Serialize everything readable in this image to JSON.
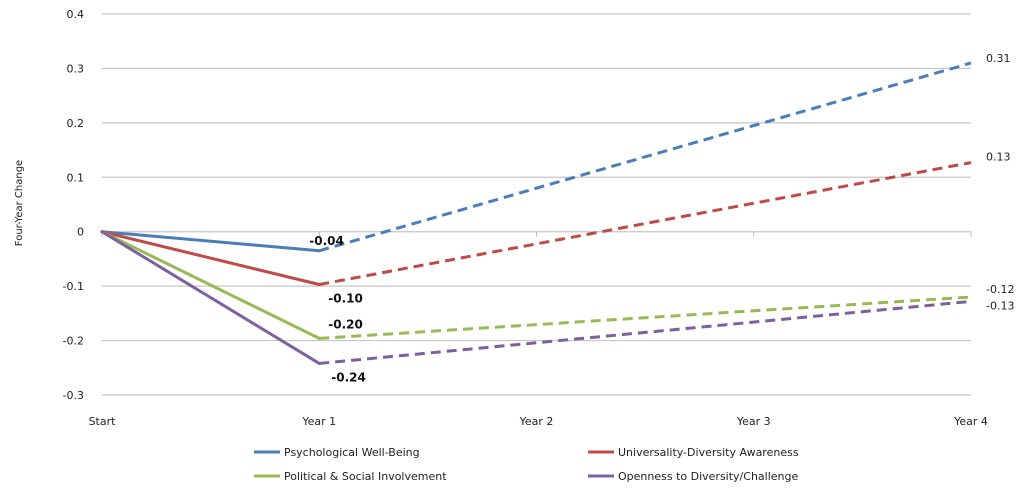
{
  "chart_data": {
    "type": "line",
    "title": "",
    "xlabel": "",
    "ylabel": "Four-Year Change",
    "categories": [
      "Start",
      "Year 1",
      "Year 2",
      "Year 3",
      "Year 4"
    ],
    "ylim": [
      -0.3,
      0.4
    ],
    "yticks": [
      "0.4",
      "0.3",
      "0.2",
      "0.1",
      "0",
      "-0.1",
      "-0.2",
      "-0.3"
    ],
    "grid": true,
    "legend_position": "bottom",
    "series": [
      {
        "name": "Psychological Well-Being",
        "color": "#4a7ebb",
        "solid": [
          0,
          -0.035
        ],
        "dashed_end": 0.31,
        "year1_label": "-0.04",
        "end_label": "0.31"
      },
      {
        "name": "Universality-Diversity Awareness",
        "color": "#be4b48",
        "solid": [
          0,
          -0.097
        ],
        "dashed_end": 0.127,
        "year1_label": "-0.10",
        "end_label": "0.13"
      },
      {
        "name": "Political & Social Involvement",
        "color": "#98b954",
        "solid": [
          0,
          -0.196
        ],
        "dashed_end": -0.12,
        "year1_label": "-0.20",
        "end_label": "-0.12"
      },
      {
        "name": "Openness to Diversity/Challenge",
        "color": "#7d60a0",
        "solid": [
          0,
          -0.242
        ],
        "dashed_end": -0.128,
        "year1_label": "-0.24",
        "end_label": "-0.13"
      }
    ]
  }
}
